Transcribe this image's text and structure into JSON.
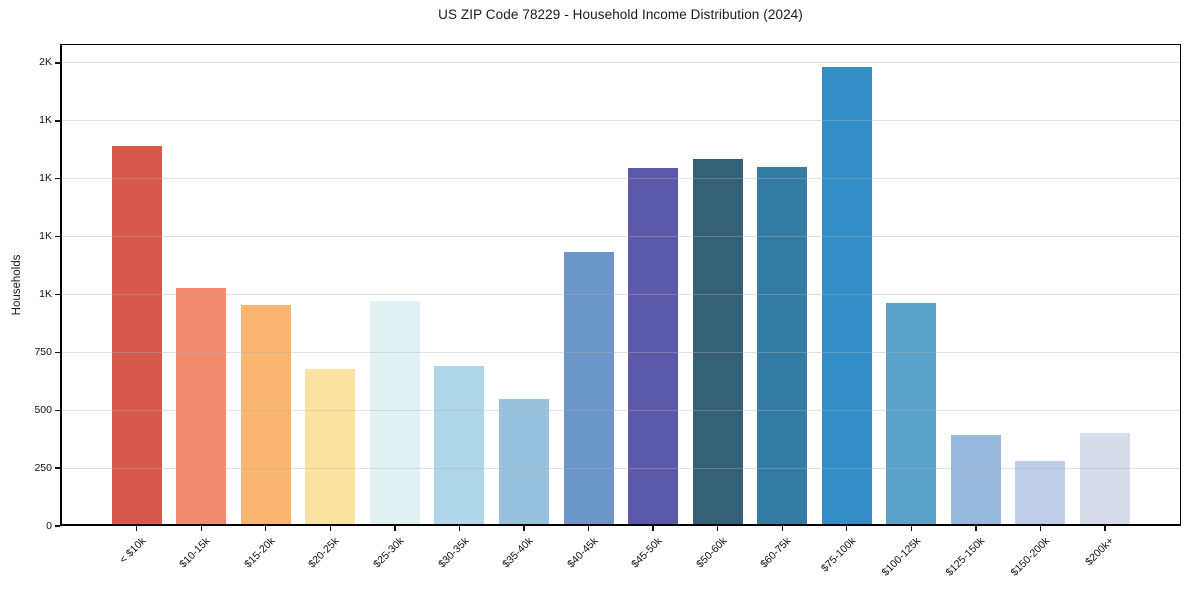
{
  "chart_data": {
    "type": "bar",
    "title": "US ZIP Code 78229 - Household Income Distribution (2024)",
    "xlabel": "",
    "ylabel": "Households",
    "categories": [
      "< $10k",
      "$10-15k",
      "$15-20k",
      "$20-25k",
      "$25-30k",
      "$30-35k",
      "$35-40k",
      "$40-45k",
      "$45-50k",
      "$50-60k",
      "$60-75k",
      "$75-100k",
      "$100-125k",
      "$125-150k",
      "$150-200k",
      "$200k+"
    ],
    "values": [
      1640,
      1030,
      955,
      680,
      970,
      690,
      550,
      1185,
      1545,
      1585,
      1550,
      1985,
      965,
      395,
      280,
      400
    ],
    "bar_colors": [
      "#d6594c",
      "#f18a6e",
      "#f9b671",
      "#fce2a0",
      "#e3f0f4",
      "#b0d7e7",
      "#98c2dd",
      "#6c95c8",
      "#5c59a9",
      "#356076",
      "#347ca2",
      "#338ec6",
      "#5aa2c9",
      "#96b8da",
      "#bfcde6",
      "#d8dbe9"
    ],
    "yticks": [
      {
        "value": 0,
        "label": "0"
      },
      {
        "value": 250,
        "label": "250"
      },
      {
        "value": 500,
        "label": "500"
      },
      {
        "value": 750,
        "label": "750"
      },
      {
        "value": 1000,
        "label": "1K"
      },
      {
        "value": 1250,
        "label": "1K"
      },
      {
        "value": 1500,
        "label": "1K"
      },
      {
        "value": 1750,
        "label": "1K"
      },
      {
        "value": 2000,
        "label": "2K"
      }
    ],
    "ylim": [
      0,
      2082
    ],
    "grid": "horizontal-light",
    "gridline_color": "#e3e3e3",
    "legend": "none"
  }
}
